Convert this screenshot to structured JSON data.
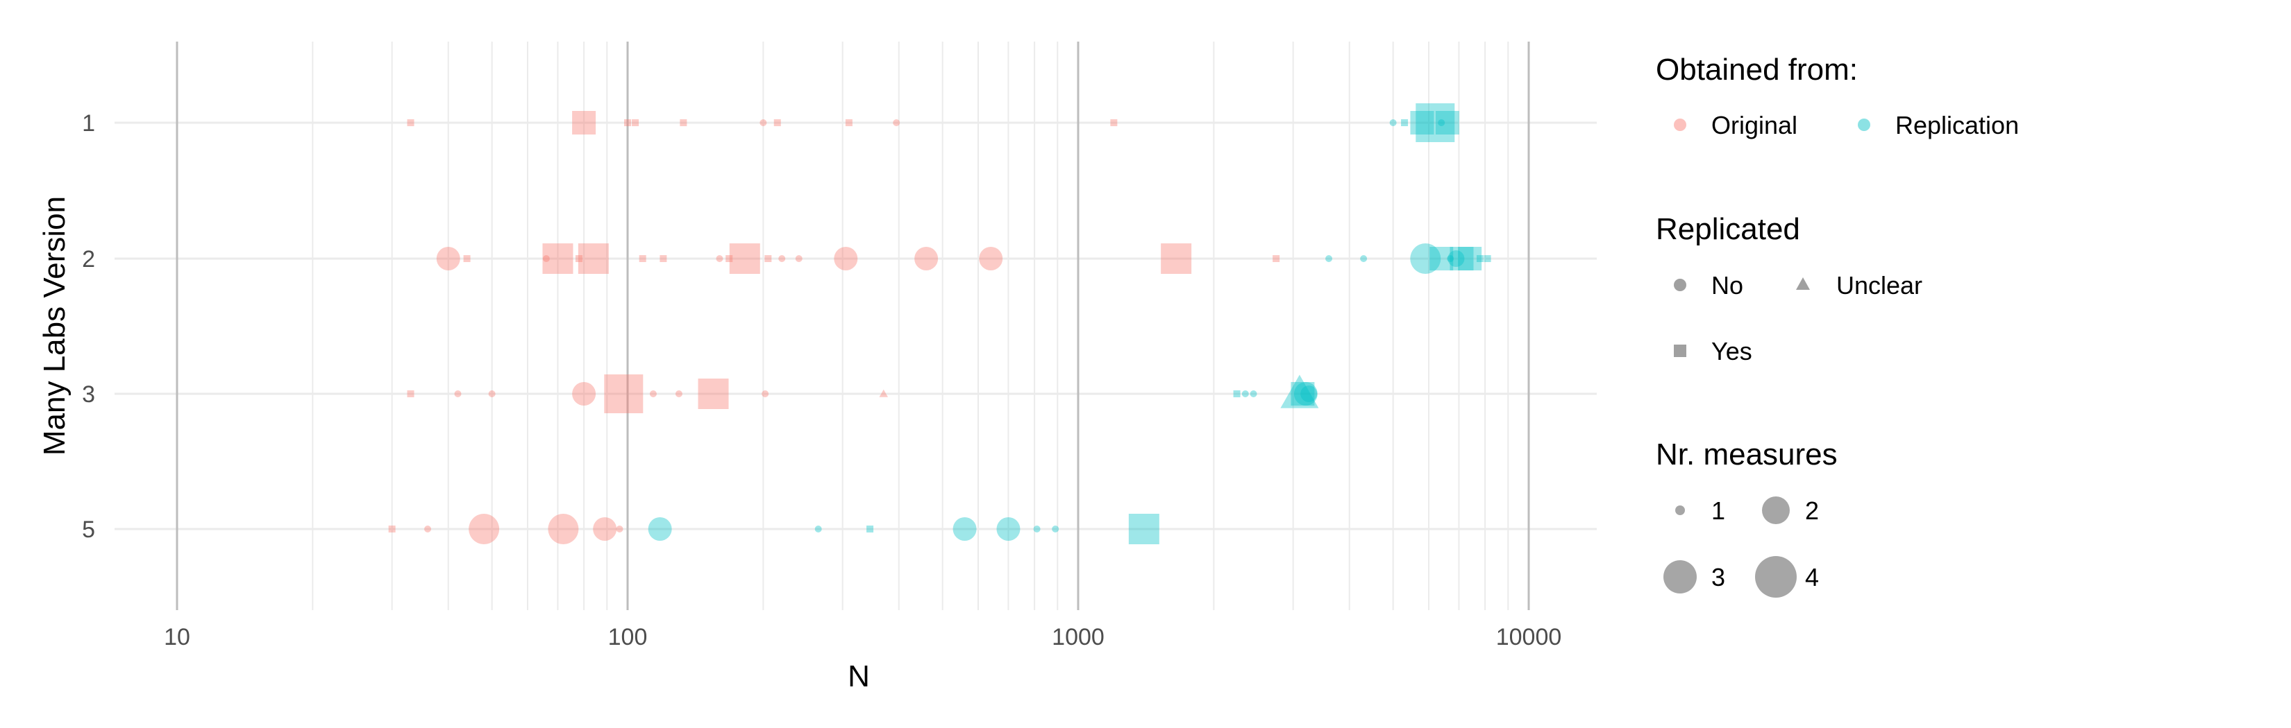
{
  "chart_data": {
    "type": "scatter",
    "xlabel": "N",
    "ylabel": "Many Labs Version",
    "x_scale": "log10",
    "xlim": [
      7,
      14000
    ],
    "x_ticks": [
      "10",
      "100",
      "1000",
      "10000"
    ],
    "categories": [
      "1",
      "2",
      "3",
      "5"
    ],
    "colors": {
      "Original": "#F8766D",
      "Replication": "#00BFC4"
    },
    "grid": true,
    "legend_position": "right",
    "legend": {
      "color": {
        "title": "Obtained from:",
        "items": [
          "Original",
          "Replication"
        ]
      },
      "shape": {
        "title": "Replicated",
        "items": [
          "No",
          "Unclear",
          "Yes"
        ]
      },
      "size": {
        "title": "Nr. measures",
        "items": [
          "1",
          "2",
          "3",
          "4"
        ]
      }
    },
    "series": [
      {
        "name": "Original",
        "points": [
          {
            "y": "1",
            "x": 33,
            "shape": "Yes",
            "measures": 1
          },
          {
            "y": "1",
            "x": 80,
            "shape": "Yes",
            "measures": 3
          },
          {
            "y": "1",
            "x": 100,
            "shape": "Yes",
            "measures": 1
          },
          {
            "y": "1",
            "x": 104,
            "shape": "Yes",
            "measures": 1
          },
          {
            "y": "1",
            "x": 133,
            "shape": "Yes",
            "measures": 1
          },
          {
            "y": "1",
            "x": 200,
            "shape": "No",
            "measures": 1
          },
          {
            "y": "1",
            "x": 215,
            "shape": "Yes",
            "measures": 1
          },
          {
            "y": "1",
            "x": 310,
            "shape": "Yes",
            "measures": 1
          },
          {
            "y": "1",
            "x": 395,
            "shape": "No",
            "measures": 1
          },
          {
            "y": "1",
            "x": 1200,
            "shape": "Yes",
            "measures": 1
          },
          {
            "y": "2",
            "x": 40,
            "shape": "No",
            "measures": 3
          },
          {
            "y": "2",
            "x": 44,
            "shape": "Yes",
            "measures": 1
          },
          {
            "y": "2",
            "x": 66,
            "shape": "No",
            "measures": 1
          },
          {
            "y": "2",
            "x": 70,
            "shape": "Yes",
            "measures": 4
          },
          {
            "y": "2",
            "x": 78,
            "shape": "Yes",
            "measures": 1
          },
          {
            "y": "2",
            "x": 84,
            "shape": "Yes",
            "measures": 4
          },
          {
            "y": "2",
            "x": 108,
            "shape": "Yes",
            "measures": 1
          },
          {
            "y": "2",
            "x": 120,
            "shape": "Yes",
            "measures": 1
          },
          {
            "y": "2",
            "x": 160,
            "shape": "No",
            "measures": 1
          },
          {
            "y": "2",
            "x": 168,
            "shape": "Yes",
            "measures": 1
          },
          {
            "y": "2",
            "x": 182,
            "shape": "Yes",
            "measures": 4
          },
          {
            "y": "2",
            "x": 205,
            "shape": "Yes",
            "measures": 1
          },
          {
            "y": "2",
            "x": 220,
            "shape": "No",
            "measures": 1
          },
          {
            "y": "2",
            "x": 240,
            "shape": "No",
            "measures": 1
          },
          {
            "y": "2",
            "x": 305,
            "shape": "No",
            "measures": 3
          },
          {
            "y": "2",
            "x": 460,
            "shape": "No",
            "measures": 3
          },
          {
            "y": "2",
            "x": 640,
            "shape": "No",
            "measures": 3
          },
          {
            "y": "2",
            "x": 1650,
            "shape": "Yes",
            "measures": 4
          },
          {
            "y": "2",
            "x": 2750,
            "shape": "Yes",
            "measures": 1
          },
          {
            "y": "3",
            "x": 33,
            "shape": "Yes",
            "measures": 1
          },
          {
            "y": "3",
            "x": 42,
            "shape": "No",
            "measures": 1
          },
          {
            "y": "3",
            "x": 50,
            "shape": "No",
            "measures": 1
          },
          {
            "y": "3",
            "x": 80,
            "shape": "No",
            "measures": 3
          },
          {
            "y": "3",
            "x": 98,
            "shape": "Yes",
            "measures": 5
          },
          {
            "y": "3",
            "x": 114,
            "shape": "No",
            "measures": 1
          },
          {
            "y": "3",
            "x": 130,
            "shape": "No",
            "measures": 1
          },
          {
            "y": "3",
            "x": 155,
            "shape": "Yes",
            "measures": 4
          },
          {
            "y": "3",
            "x": 202,
            "shape": "No",
            "measures": 1
          },
          {
            "y": "3",
            "x": 370,
            "shape": "Unclear",
            "measures": 1
          },
          {
            "y": "5",
            "x": 30,
            "shape": "Yes",
            "measures": 1
          },
          {
            "y": "5",
            "x": 36,
            "shape": "No",
            "measures": 1
          },
          {
            "y": "5",
            "x": 48,
            "shape": "No",
            "measures": 4
          },
          {
            "y": "5",
            "x": 72,
            "shape": "No",
            "measures": 4
          },
          {
            "y": "5",
            "x": 89,
            "shape": "No",
            "measures": 3
          },
          {
            "y": "5",
            "x": 96,
            "shape": "No",
            "measures": 1
          }
        ]
      },
      {
        "name": "Replication",
        "points": [
          {
            "y": "1",
            "x": 5000,
            "shape": "No",
            "measures": 1
          },
          {
            "y": "1",
            "x": 5300,
            "shape": "Yes",
            "measures": 1
          },
          {
            "y": "1",
            "x": 5800,
            "shape": "Yes",
            "measures": 3
          },
          {
            "y": "1",
            "x": 6200,
            "shape": "Yes",
            "measures": 5
          },
          {
            "y": "1",
            "x": 6400,
            "shape": "No",
            "measures": 1
          },
          {
            "y": "1",
            "x": 6600,
            "shape": "Yes",
            "measures": 3
          },
          {
            "y": "2",
            "x": 3600,
            "shape": "No",
            "measures": 1
          },
          {
            "y": "2",
            "x": 4300,
            "shape": "No",
            "measures": 1
          },
          {
            "y": "2",
            "x": 5900,
            "shape": "No",
            "measures": 4
          },
          {
            "y": "2",
            "x": 6400,
            "shape": "Yes",
            "measures": 3
          },
          {
            "y": "2",
            "x": 6700,
            "shape": "No",
            "measures": 1
          },
          {
            "y": "2",
            "x": 6900,
            "shape": "No",
            "measures": 2
          },
          {
            "y": "2",
            "x": 7100,
            "shape": "Yes",
            "measures": 3
          },
          {
            "y": "2",
            "x": 7400,
            "shape": "Yes",
            "measures": 3
          },
          {
            "y": "2",
            "x": 7800,
            "shape": "Yes",
            "measures": 1
          },
          {
            "y": "2",
            "x": 8100,
            "shape": "Yes",
            "measures": 1
          },
          {
            "y": "3",
            "x": 2250,
            "shape": "Yes",
            "measures": 1
          },
          {
            "y": "3",
            "x": 2350,
            "shape": "No",
            "measures": 1
          },
          {
            "y": "3",
            "x": 2450,
            "shape": "No",
            "measures": 1
          },
          {
            "y": "3",
            "x": 3100,
            "shape": "Unclear",
            "measures": 4
          },
          {
            "y": "3",
            "x": 3150,
            "shape": "Yes",
            "measures": 3
          },
          {
            "y": "3",
            "x": 3200,
            "shape": "No",
            "measures": 3
          },
          {
            "y": "3",
            "x": 3250,
            "shape": "No",
            "measures": 2
          },
          {
            "y": "5",
            "x": 118,
            "shape": "No",
            "measures": 3
          },
          {
            "y": "5",
            "x": 265,
            "shape": "No",
            "measures": 1
          },
          {
            "y": "5",
            "x": 345,
            "shape": "Yes",
            "measures": 1
          },
          {
            "y": "5",
            "x": 560,
            "shape": "No",
            "measures": 3
          },
          {
            "y": "5",
            "x": 700,
            "shape": "No",
            "measures": 3
          },
          {
            "y": "5",
            "x": 810,
            "shape": "No",
            "measures": 1
          },
          {
            "y": "5",
            "x": 890,
            "shape": "No",
            "measures": 1
          },
          {
            "y": "5",
            "x": 1400,
            "shape": "Yes",
            "measures": 4
          }
        ]
      }
    ]
  }
}
